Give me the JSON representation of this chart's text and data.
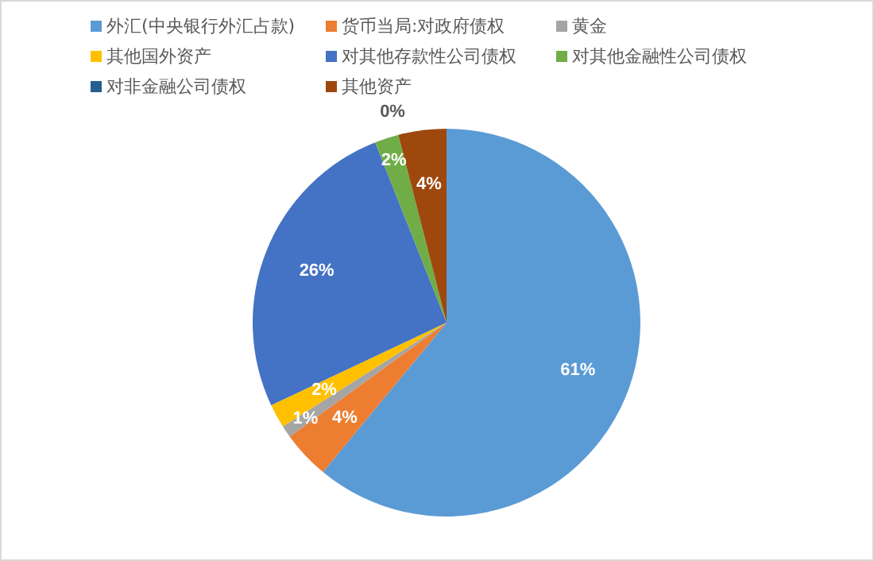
{
  "chart_data": {
    "type": "pie",
    "categories": [
      "外汇(中央银行外汇占款)",
      "货币当局:对政府债权",
      "黄金",
      "其他国外资产",
      "对其他存款性公司债权",
      "对其他金融性公司债权",
      "对非金融公司债权",
      "其他资产"
    ],
    "values": [
      61,
      4,
      1,
      2,
      26,
      2,
      0,
      4
    ],
    "colors": [
      "#5b9bd5",
      "#ed7d31",
      "#a5a5a5",
      "#ffc000",
      "#4472c4",
      "#70ad47",
      "#255e91",
      "#9e480e"
    ],
    "value_labels": [
      "61%",
      "4%",
      "1%",
      "2%",
      "26%",
      "2%",
      "0%",
      "4%"
    ],
    "legend": "top"
  }
}
